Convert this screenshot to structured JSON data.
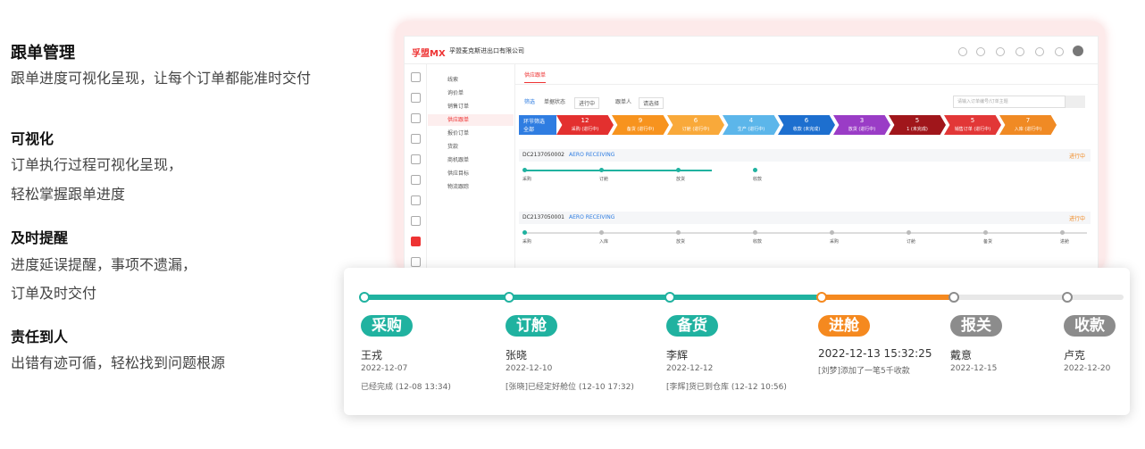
{
  "intro": {
    "title": "跟单管理",
    "desc": "跟单进度可视化呈现，让每个订单都能准时交付"
  },
  "features": [
    {
      "title": "可视化",
      "lines": [
        "订单执行过程可视化呈现，",
        "轻松掌握跟单进度"
      ]
    },
    {
      "title": "及时提醒",
      "lines": [
        "进度延误提醒，事项不遗漏，",
        "订单及时交付"
      ]
    },
    {
      "title": "责任到人",
      "lines": [
        "出错有迹可循，轻松找到问题根源"
      ]
    }
  ],
  "app": {
    "logo": "孚盟MX",
    "company": "孚盟麦克斯进出口有限公司",
    "menu": [
      "线索",
      "询价单",
      "销售订单",
      "供应跟单",
      "报价订单",
      "货款",
      "商机跟单",
      "供应目标",
      "物流跟踪"
    ],
    "active_menu": 3,
    "tab": "供应跟单",
    "filters": [
      "筛选",
      "单据状态",
      "进行中",
      "跟单人",
      "请选择"
    ],
    "search": "请输入订单编号/订单主题",
    "stage_head": [
      "环节筛选",
      "全部"
    ],
    "stages": [
      {
        "count": "12",
        "label": "采购 (进行中)",
        "color": "#e3302f"
      },
      {
        "count": "9",
        "label": "备货 (进行中)",
        "color": "#f7931e"
      },
      {
        "count": "6",
        "label": "订舱 (进行中)",
        "color": "#f9a93a"
      },
      {
        "count": "4",
        "label": "生产 (进行中)",
        "color": "#5cb6ea"
      },
      {
        "count": "6",
        "label": "收款 (未完成)",
        "color": "#1d6fcf"
      },
      {
        "count": "3",
        "label": "放货 (进行中)",
        "color": "#9a3cc6"
      },
      {
        "count": "5",
        "label": "1 (未完成)",
        "color": "#a0161b"
      },
      {
        "count": "5",
        "label": "销售订单 (进行中)",
        "color": "#e23737"
      },
      {
        "count": "7",
        "label": "入库 (进行中)",
        "color": "#f08a24"
      }
    ],
    "orders": [
      {
        "id": "DC2137050002",
        "customer": "AERO RECEIVING",
        "status": "进行中",
        "steps": [
          "采购",
          "订舱",
          "放货",
          "收款"
        ]
      },
      {
        "id": "DC2137050001",
        "customer": "AERO RECEIVING",
        "status": "进行中",
        "steps": [
          "采购",
          "入库",
          "放货",
          "收款",
          "采购",
          "订舱",
          "备货",
          "进舱"
        ]
      }
    ]
  },
  "timeline": [
    {
      "label": "采购",
      "status": "done",
      "person": "王戎",
      "date": "2022-12-07",
      "note": "已经完成 (12-08 13:34)"
    },
    {
      "label": "订舱",
      "status": "done",
      "person": "张晓",
      "date": "2022-12-10",
      "note": "[张晓]已经定好舱位 (12-10 17:32)"
    },
    {
      "label": "备货",
      "status": "done",
      "person": "李辉",
      "date": "2022-12-12",
      "note": "[李辉]货已到仓库 (12-12 10:56)"
    },
    {
      "label": "进舱",
      "status": "current",
      "person": "2022-12-13 15:32:25",
      "date": "[刘梦]添加了一笔5千收款"
    },
    {
      "label": "报关",
      "status": "pending",
      "person": "戴意",
      "date": "2022-12-15"
    },
    {
      "label": "收款",
      "status": "pending",
      "person": "卢克",
      "date": "2022-12-20"
    }
  ]
}
